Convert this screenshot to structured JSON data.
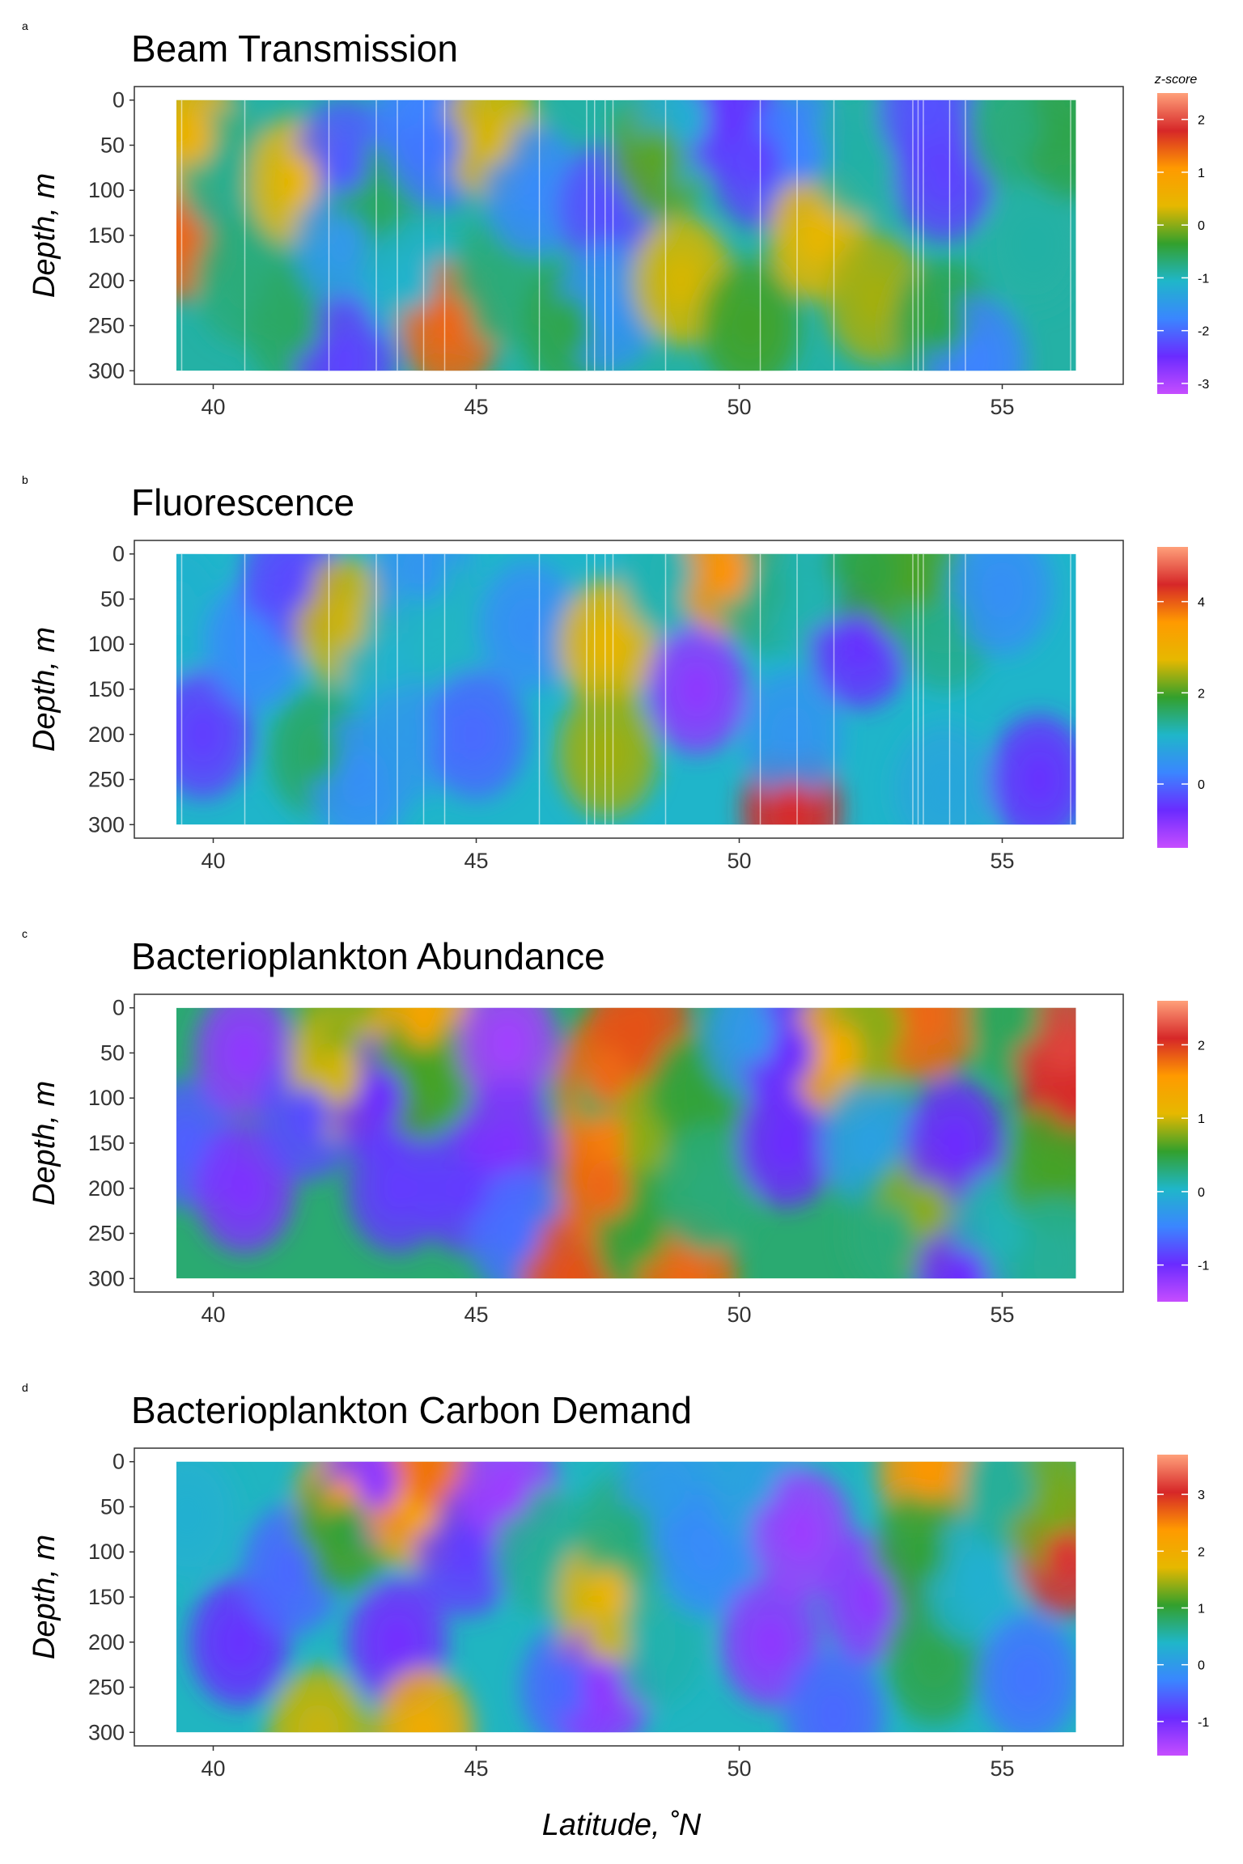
{
  "figure": {
    "x_axis_title": "Latitude, ˚N",
    "y_axis_title": "Depth, m",
    "colorbar_title": "z-score"
  },
  "palette": [
    "#ffa07a",
    "#d62728",
    "#ff9a00",
    "#e6b800",
    "#33a02c",
    "#1fb6c9",
    "#3a86ff",
    "#6a2bff",
    "#c64dff"
  ],
  "chart_data": [
    {
      "type": "heatmap",
      "letter": "a",
      "title": "Beam Transmission",
      "xlim": [
        38.5,
        57.3
      ],
      "ylim": [
        315,
        -15
      ],
      "x_ticks": [
        40,
        45,
        50,
        55
      ],
      "y_ticks": [
        0,
        50,
        100,
        150,
        200,
        250,
        300
      ],
      "data_extent": {
        "lat": [
          39.3,
          56.4
        ],
        "depth": [
          0,
          300
        ]
      },
      "colorbar": {
        "min": -3.2,
        "max": 2.5,
        "ticks": [
          -3,
          -2,
          -1,
          0,
          1,
          2
        ]
      },
      "station_lines_lat": [
        39.4,
        40.6,
        42.2,
        43.1,
        43.5,
        44.0,
        44.4,
        46.2,
        47.1,
        47.25,
        47.45,
        47.6,
        48.6,
        50.4,
        51.1,
        51.8,
        53.3,
        53.4,
        53.5,
        54.0,
        54.3,
        56.3
      ],
      "features": [
        {
          "lat": 39.3,
          "depth": 150,
          "value": 1.4
        },
        {
          "lat": 39.6,
          "depth": 40,
          "value": 0.5
        },
        {
          "lat": 40.3,
          "depth": 80,
          "value": -0.8
        },
        {
          "lat": 40.6,
          "depth": 200,
          "value": -0.7
        },
        {
          "lat": 41.6,
          "depth": 90,
          "value": 0.4
        },
        {
          "lat": 41.6,
          "depth": 250,
          "value": -0.6
        },
        {
          "lat": 42.5,
          "depth": 70,
          "value": -2.1
        },
        {
          "lat": 42.5,
          "depth": 160,
          "value": -1.5
        },
        {
          "lat": 42.5,
          "depth": 290,
          "value": -2.3
        },
        {
          "lat": 43.2,
          "depth": 120,
          "value": -0.6
        },
        {
          "lat": 43.8,
          "depth": 200,
          "value": -1.1
        },
        {
          "lat": 44.0,
          "depth": 10,
          "value": -1.8
        },
        {
          "lat": 44.3,
          "depth": 50,
          "value": -1.9
        },
        {
          "lat": 44.5,
          "depth": 250,
          "value": 1.4
        },
        {
          "lat": 45.3,
          "depth": 40,
          "value": 0.3
        },
        {
          "lat": 45.5,
          "depth": 200,
          "value": -0.7
        },
        {
          "lat": 46.1,
          "depth": 100,
          "value": -1.7
        },
        {
          "lat": 46.8,
          "depth": 250,
          "value": -0.5
        },
        {
          "lat": 47.5,
          "depth": 120,
          "value": -2.2
        },
        {
          "lat": 47.5,
          "depth": 230,
          "value": -1.6
        },
        {
          "lat": 48.5,
          "depth": 60,
          "value": -0.2
        },
        {
          "lat": 48.9,
          "depth": 200,
          "value": 0.3
        },
        {
          "lat": 49.0,
          "depth": 20,
          "value": -1.2
        },
        {
          "lat": 49.8,
          "depth": 15,
          "value": -2.4
        },
        {
          "lat": 50.4,
          "depth": 70,
          "value": -2.3
        },
        {
          "lat": 50.2,
          "depth": 250,
          "value": -0.3
        },
        {
          "lat": 51.2,
          "depth": 60,
          "value": -1.8
        },
        {
          "lat": 51.5,
          "depth": 150,
          "value": 0.4
        },
        {
          "lat": 52.3,
          "depth": 60,
          "value": -0.9
        },
        {
          "lat": 52.6,
          "depth": 220,
          "value": 0.1
        },
        {
          "lat": 53.6,
          "depth": 10,
          "value": -2.2
        },
        {
          "lat": 53.9,
          "depth": 85,
          "value": -2.3
        },
        {
          "lat": 53.9,
          "depth": 250,
          "value": -0.5
        },
        {
          "lat": 54.5,
          "depth": 290,
          "value": -1.8
        },
        {
          "lat": 55.3,
          "depth": 30,
          "value": -0.7
        },
        {
          "lat": 55.6,
          "depth": 160,
          "value": -0.9
        },
        {
          "lat": 56.3,
          "depth": 40,
          "value": -0.5
        }
      ]
    },
    {
      "type": "heatmap",
      "letter": "b",
      "title": "Fluorescence",
      "xlim": [
        38.5,
        57.3
      ],
      "ylim": [
        315,
        -15
      ],
      "x_ticks": [
        40,
        45,
        50,
        55
      ],
      "y_ticks": [
        0,
        50,
        100,
        150,
        200,
        250,
        300
      ],
      "data_extent": {
        "lat": [
          39.3,
          56.4
        ],
        "depth": [
          0,
          300
        ]
      },
      "colorbar": {
        "min": -1.4,
        "max": 5.2,
        "ticks": [
          0,
          2,
          4
        ]
      },
      "station_lines_lat": [
        39.4,
        40.6,
        42.2,
        43.1,
        43.5,
        44.0,
        44.4,
        46.2,
        47.1,
        47.25,
        47.45,
        47.6,
        48.6,
        50.4,
        51.1,
        51.8,
        53.3,
        53.4,
        53.5,
        54.0,
        54.3,
        56.3
      ],
      "features": [
        {
          "lat": 39.3,
          "depth": 60,
          "value": 1.0
        },
        {
          "lat": 39.8,
          "depth": 200,
          "value": -0.4
        },
        {
          "lat": 40.8,
          "depth": 100,
          "value": 0.3
        },
        {
          "lat": 41.5,
          "depth": 30,
          "value": -0.3
        },
        {
          "lat": 42.0,
          "depth": 220,
          "value": 1.6
        },
        {
          "lat": 42.5,
          "depth": 75,
          "value": 2.6
        },
        {
          "lat": 42.8,
          "depth": 250,
          "value": 0.4
        },
        {
          "lat": 43.4,
          "depth": 120,
          "value": 1.0
        },
        {
          "lat": 43.8,
          "depth": 200,
          "value": 0.6
        },
        {
          "lat": 44.0,
          "depth": 20,
          "value": 0.5
        },
        {
          "lat": 44.4,
          "depth": 80,
          "value": 1.1
        },
        {
          "lat": 45.0,
          "depth": 200,
          "value": 0.0
        },
        {
          "lat": 46.0,
          "depth": 80,
          "value": 0.4
        },
        {
          "lat": 47.5,
          "depth": 100,
          "value": 2.8
        },
        {
          "lat": 47.5,
          "depth": 220,
          "value": 2.4
        },
        {
          "lat": 48.7,
          "depth": 20,
          "value": 1.2
        },
        {
          "lat": 49.2,
          "depth": 150,
          "value": -0.9
        },
        {
          "lat": 49.8,
          "depth": 20,
          "value": 3.6
        },
        {
          "lat": 50.5,
          "depth": 40,
          "value": 1.4
        },
        {
          "lat": 51.0,
          "depth": 285,
          "value": 4.4
        },
        {
          "lat": 51.0,
          "depth": 200,
          "value": 0.5
        },
        {
          "lat": 51.5,
          "depth": 50,
          "value": 1.2
        },
        {
          "lat": 52.3,
          "depth": 100,
          "value": -0.5
        },
        {
          "lat": 52.6,
          "depth": 20,
          "value": 1.8
        },
        {
          "lat": 53.4,
          "depth": 30,
          "value": 2.0
        },
        {
          "lat": 53.9,
          "depth": 80,
          "value": 1.4
        },
        {
          "lat": 53.9,
          "depth": 260,
          "value": 0.8
        },
        {
          "lat": 55.0,
          "depth": 40,
          "value": 0.4
        },
        {
          "lat": 55.7,
          "depth": 250,
          "value": -0.5
        }
      ]
    },
    {
      "type": "heatmap",
      "letter": "c",
      "title": "Bacterioplankton Abundance",
      "xlim": [
        38.5,
        57.3
      ],
      "ylim": [
        315,
        -15
      ],
      "x_ticks": [
        40,
        45,
        50,
        55
      ],
      "y_ticks": [
        0,
        50,
        100,
        150,
        200,
        250,
        300
      ],
      "data_extent": {
        "lat": [
          39.3,
          56.4
        ],
        "depth": [
          0,
          300
        ]
      },
      "colorbar": {
        "min": -1.5,
        "max": 2.6,
        "ticks": [
          -1,
          0,
          1,
          2
        ]
      },
      "station_lines_lat": [],
      "features": [
        {
          "lat": 39.5,
          "depth": 150,
          "value": -0.7
        },
        {
          "lat": 40.6,
          "depth": 50,
          "value": -1.2
        },
        {
          "lat": 40.6,
          "depth": 200,
          "value": -1.1
        },
        {
          "lat": 41.8,
          "depth": 120,
          "value": -0.8
        },
        {
          "lat": 42.4,
          "depth": 40,
          "value": 0.8
        },
        {
          "lat": 42.4,
          "depth": 75,
          "value": 1.0
        },
        {
          "lat": 43.2,
          "depth": 100,
          "value": -1.0
        },
        {
          "lat": 43.5,
          "depth": 200,
          "value": -0.9
        },
        {
          "lat": 44.0,
          "depth": 10,
          "value": 1.4
        },
        {
          "lat": 44.0,
          "depth": 75,
          "value": 0.6
        },
        {
          "lat": 44.8,
          "depth": 200,
          "value": -0.9
        },
        {
          "lat": 45.6,
          "depth": 40,
          "value": -1.3
        },
        {
          "lat": 45.6,
          "depth": 150,
          "value": -1.1
        },
        {
          "lat": 45.8,
          "depth": 250,
          "value": -0.6
        },
        {
          "lat": 46.8,
          "depth": 300,
          "value": 1.9
        },
        {
          "lat": 47.3,
          "depth": 100,
          "value": 0.4
        },
        {
          "lat": 47.5,
          "depth": 75,
          "value": 1.8
        },
        {
          "lat": 47.5,
          "depth": 150,
          "value": 1.7
        },
        {
          "lat": 47.5,
          "depth": 200,
          "value": 1.8
        },
        {
          "lat": 48.1,
          "depth": 20,
          "value": 1.9
        },
        {
          "lat": 48.2,
          "depth": 150,
          "value": 0.8
        },
        {
          "lat": 48.2,
          "depth": 250,
          "value": 0.5
        },
        {
          "lat": 49.0,
          "depth": 300,
          "value": 1.8
        },
        {
          "lat": 49.2,
          "depth": 100,
          "value": 0.5
        },
        {
          "lat": 49.4,
          "depth": 200,
          "value": 0.3
        },
        {
          "lat": 50.3,
          "depth": 30,
          "value": -0.3
        },
        {
          "lat": 50.9,
          "depth": 150,
          "value": -1.0
        },
        {
          "lat": 51.0,
          "depth": 50,
          "value": -1.0
        },
        {
          "lat": 51.9,
          "depth": 50,
          "value": 1.3
        },
        {
          "lat": 52.5,
          "depth": 150,
          "value": -0.2
        },
        {
          "lat": 52.7,
          "depth": 20,
          "value": 0.8
        },
        {
          "lat": 53.0,
          "depth": 250,
          "value": 0.3
        },
        {
          "lat": 53.6,
          "depth": 10,
          "value": 1.8
        },
        {
          "lat": 53.6,
          "depth": 225,
          "value": 0.8
        },
        {
          "lat": 54.1,
          "depth": 150,
          "value": -1.0
        },
        {
          "lat": 54.3,
          "depth": 300,
          "value": -1.0
        },
        {
          "lat": 55.0,
          "depth": 250,
          "value": 0.1
        },
        {
          "lat": 55.3,
          "depth": 10,
          "value": 0.4
        },
        {
          "lat": 56.2,
          "depth": 50,
          "value": 2.2
        },
        {
          "lat": 56.3,
          "depth": 100,
          "value": 2.1
        },
        {
          "lat": 56.0,
          "depth": 180,
          "value": 0.6
        },
        {
          "lat": 56.0,
          "depth": 280,
          "value": 0.2
        }
      ]
    },
    {
      "type": "heatmap",
      "letter": "d",
      "title": "Bacterioplankton Carbon Demand",
      "xlim": [
        38.5,
        57.3
      ],
      "ylim": [
        315,
        -15
      ],
      "x_ticks": [
        40,
        45,
        50,
        55
      ],
      "y_ticks": [
        0,
        50,
        100,
        150,
        200,
        250,
        300
      ],
      "data_extent": {
        "lat": [
          39.3,
          56.4
        ],
        "depth": [
          0,
          300
        ]
      },
      "colorbar": {
        "min": -1.6,
        "max": 3.7,
        "ticks": [
          -1,
          0,
          1,
          2,
          3
        ]
      },
      "station_lines_lat": [],
      "features": [
        {
          "lat": 39.5,
          "depth": 60,
          "value": 0.3
        },
        {
          "lat": 40.5,
          "depth": 200,
          "value": -0.9
        },
        {
          "lat": 41.5,
          "depth": 120,
          "value": -0.5
        },
        {
          "lat": 42.0,
          "depth": 300,
          "value": 1.6
        },
        {
          "lat": 42.5,
          "depth": 50,
          "value": 2.4
        },
        {
          "lat": 42.5,
          "depth": 75,
          "value": 1.0
        },
        {
          "lat": 43.1,
          "depth": 20,
          "value": -1.2
        },
        {
          "lat": 43.5,
          "depth": 200,
          "value": -1.0
        },
        {
          "lat": 43.9,
          "depth": 50,
          "value": 2.1
        },
        {
          "lat": 44.1,
          "depth": 20,
          "value": 2.6
        },
        {
          "lat": 44.0,
          "depth": 300,
          "value": 2.0
        },
        {
          "lat": 44.8,
          "depth": 100,
          "value": -0.8
        },
        {
          "lat": 45.6,
          "depth": 30,
          "value": -1.3
        },
        {
          "lat": 46.3,
          "depth": 100,
          "value": 0.6
        },
        {
          "lat": 46.8,
          "depth": 250,
          "value": -0.5
        },
        {
          "lat": 47.5,
          "depth": 150,
          "value": 1.8
        },
        {
          "lat": 47.5,
          "depth": 200,
          "value": 1.6
        },
        {
          "lat": 47.4,
          "depth": 250,
          "value": -1.2
        },
        {
          "lat": 47.9,
          "depth": 80,
          "value": 0.7
        },
        {
          "lat": 48.4,
          "depth": 200,
          "value": 0.5
        },
        {
          "lat": 48.7,
          "depth": 30,
          "value": 0.0
        },
        {
          "lat": 49.4,
          "depth": 100,
          "value": -0.2
        },
        {
          "lat": 50.3,
          "depth": 20,
          "value": 0.1
        },
        {
          "lat": 50.6,
          "depth": 200,
          "value": -1.2
        },
        {
          "lat": 51.2,
          "depth": 80,
          "value": -1.3
        },
        {
          "lat": 51.8,
          "depth": 280,
          "value": -0.5
        },
        {
          "lat": 52.5,
          "depth": 150,
          "value": -1.2
        },
        {
          "lat": 53.6,
          "depth": 10,
          "value": 2.4
        },
        {
          "lat": 53.5,
          "depth": 100,
          "value": 1.0
        },
        {
          "lat": 53.7,
          "depth": 220,
          "value": 0.9
        },
        {
          "lat": 54.5,
          "depth": 130,
          "value": 0.3
        },
        {
          "lat": 55.2,
          "depth": 30,
          "value": 0.6
        },
        {
          "lat": 56.2,
          "depth": 100,
          "value": 3.1
        },
        {
          "lat": 56.0,
          "depth": 50,
          "value": 1.3
        },
        {
          "lat": 55.5,
          "depth": 240,
          "value": -0.4
        }
      ]
    }
  ]
}
